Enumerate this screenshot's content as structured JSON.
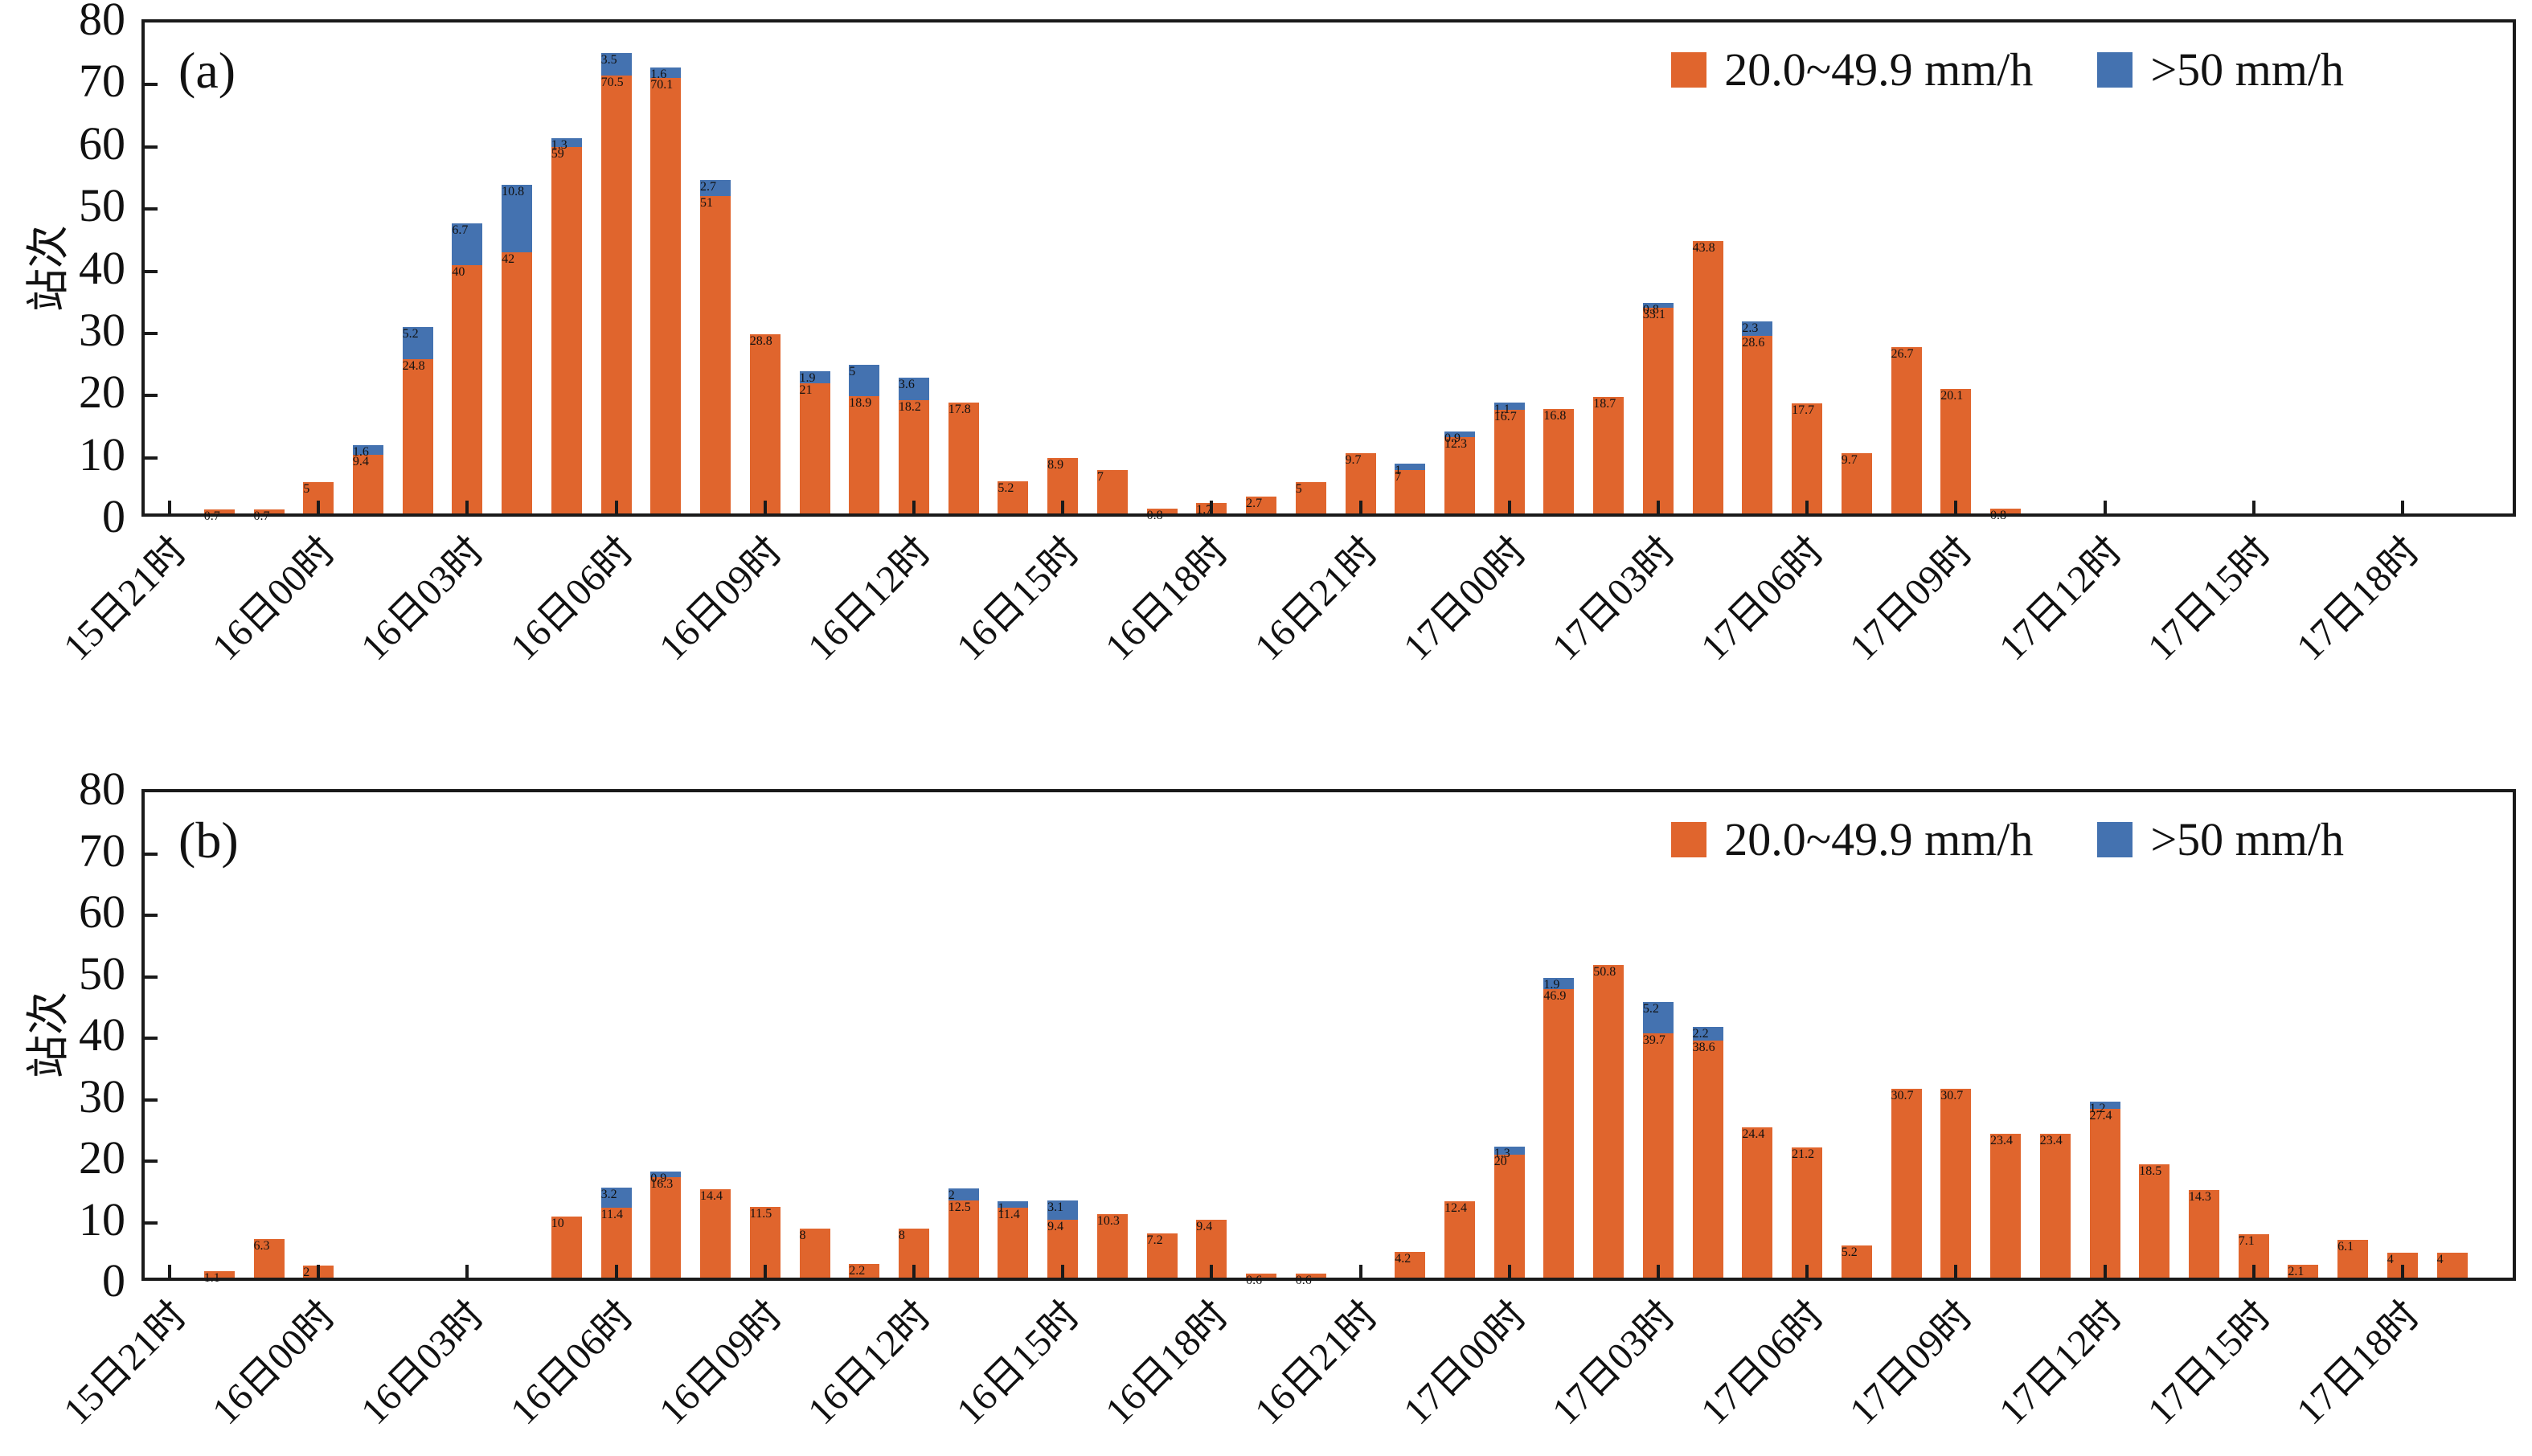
{
  "chart_data": [
    {
      "type": "bar",
      "stacked": true,
      "panel_label": "(a)",
      "ylabel": "站次",
      "ylim": [
        0,
        80
      ],
      "yticks": [
        0,
        10,
        20,
        30,
        40,
        50,
        60,
        70,
        80
      ],
      "grid": false,
      "legend_position": "top-right",
      "hours_per_bar": 1,
      "bars_per_tick": 3,
      "x_tick_labels": [
        "15日21时",
        "16日00时",
        "16日03时",
        "16日06时",
        "16日09时",
        "16日12时",
        "16日15时",
        "16日18时",
        "16日21时",
        "17日00时",
        "17日03时",
        "17日06时",
        "17日09时",
        "17日12时",
        "17日15时",
        "17日18时"
      ],
      "series": [
        {
          "name": "20.0~49.9 mm/h",
          "color": "#E0652D",
          "values": [
            0,
            0.7,
            0.7,
            5,
            9.4,
            24.8,
            40,
            42,
            59,
            70.5,
            70.1,
            51,
            28.8,
            21,
            18.9,
            18.2,
            17.8,
            5.2,
            8.9,
            7,
            0.8,
            1.7,
            2.7,
            5,
            9.7,
            7,
            12.3,
            16.7,
            16.8,
            18.7,
            33.1,
            43.8,
            28.6,
            17.7,
            9.7,
            26.7,
            20.1,
            0.8,
            0,
            0,
            0,
            0,
            0,
            0,
            0,
            0,
            0
          ]
        },
        {
          "name": ">50 mm/h",
          "color": "#4472B0",
          "values": [
            0,
            0,
            0,
            0,
            1.6,
            5.2,
            6.7,
            10.8,
            1.3,
            3.5,
            1.6,
            2.7,
            0,
            1.9,
            5,
            3.6,
            0,
            0,
            0,
            0,
            0,
            0,
            0,
            0,
            0,
            1,
            0.9,
            1.1,
            0,
            0,
            0.8,
            0,
            2.3,
            0,
            0,
            0,
            0,
            0,
            0,
            0,
            0,
            0,
            0,
            0,
            0,
            0,
            0
          ]
        }
      ]
    },
    {
      "type": "bar",
      "stacked": true,
      "panel_label": "(b)",
      "ylabel": "站次",
      "ylim": [
        0,
        80
      ],
      "yticks": [
        0,
        10,
        20,
        30,
        40,
        50,
        60,
        70,
        80
      ],
      "grid": false,
      "legend_position": "top-right",
      "hours_per_bar": 1,
      "bars_per_tick": 3,
      "x_tick_labels": [
        "15日21时",
        "16日00时",
        "16日03时",
        "16日06时",
        "16日09时",
        "16日12时",
        "16日15时",
        "16日18时",
        "16日21时",
        "17日00时",
        "17日03时",
        "17日06时",
        "17日09时",
        "17日12时",
        "17日15时",
        "17日18时"
      ],
      "series": [
        {
          "name": "20.0~49.9 mm/h",
          "color": "#E0652D",
          "values": [
            0,
            1.1,
            6.3,
            2,
            0,
            0,
            0,
            0,
            10,
            11.4,
            16.3,
            14.4,
            11.5,
            8,
            2.2,
            8,
            12.5,
            11.4,
            9.4,
            10.3,
            7.2,
            9.4,
            0.6,
            0.6,
            0,
            4.2,
            12.4,
            20,
            46.9,
            50.8,
            39.7,
            38.6,
            24.4,
            21.2,
            5.2,
            30.7,
            30.7,
            23.4,
            23.4,
            27.4,
            18.5,
            14.3,
            7.1,
            2.1,
            6.1,
            4,
            4
          ]
        },
        {
          "name": ">50 mm/h",
          "color": "#4472B0",
          "values": [
            0,
            0,
            0,
            0,
            0,
            0,
            0,
            0,
            0,
            3.2,
            0.9,
            0,
            0,
            0,
            0,
            0,
            2,
            1,
            3.1,
            0,
            0,
            0,
            0,
            0,
            0,
            0,
            0,
            1.3,
            1.9,
            0,
            5.2,
            2.2,
            0,
            0,
            0,
            0,
            0,
            0,
            0,
            1.2,
            0,
            0,
            0,
            0,
            0,
            0,
            0
          ]
        }
      ]
    }
  ],
  "legend": {
    "items": [
      {
        "label": "20.0~49.9 mm/h",
        "color": "#E0652D",
        "icon": "orange-square-icon"
      },
      {
        "label": ">50 mm/h",
        "color": "#4472B0",
        "icon": "blue-square-icon"
      }
    ]
  }
}
